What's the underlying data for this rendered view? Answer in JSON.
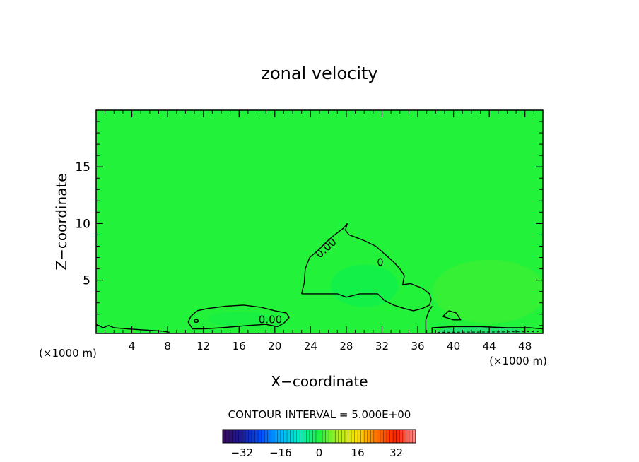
{
  "chart_data": {
    "type": "heatmap",
    "title": "zonal velocity",
    "xlabel": "X−coordinate",
    "ylabel": "Z−coordinate",
    "x_unit_left": "(×1000 m)",
    "x_unit_right": "(×1000 m)",
    "xlim": [
      0,
      50
    ],
    "ylim": [
      0.3,
      20
    ],
    "x_ticks": [
      4,
      8,
      12,
      16,
      20,
      24,
      28,
      32,
      36,
      40,
      44,
      48
    ],
    "y_ticks": [
      5,
      10,
      15
    ],
    "contour_interval_text": "CONTOUR INTERVAL = 5.000E+00",
    "contour_labels": [
      {
        "text": "0.00",
        "x": 26.0,
        "y": 7.6
      },
      {
        "text": "0.00",
        "x": 19.5,
        "y": 1.2
      }
    ],
    "colorbar": {
      "tick_labels": [
        "−32",
        "−16",
        "0",
        "16",
        "32"
      ],
      "tick_values": [
        -32,
        -16,
        0,
        16,
        32
      ],
      "range": [
        -40,
        40
      ],
      "colors": [
        "#3a0a5a",
        "#1a1a9a",
        "#0050ff",
        "#00b4ff",
        "#00f0c0",
        "#20f040",
        "#b0f020",
        "#ffe000",
        "#ff7000",
        "#ff2000",
        "#ff9090"
      ]
    },
    "field_color": "#23f23a",
    "zero_contours": [
      {
        "name": "central-cell",
        "points": [
          [
            23.0,
            3.8
          ],
          [
            23.3,
            4.8
          ],
          [
            23.4,
            6.0
          ],
          [
            23.9,
            7.0
          ],
          [
            24.8,
            7.6
          ],
          [
            25.8,
            8.4
          ],
          [
            26.7,
            9.0
          ],
          [
            27.7,
            9.6
          ],
          [
            28.1,
            10.0
          ],
          [
            27.9,
            9.4
          ],
          [
            28.3,
            9.0
          ],
          [
            29.0,
            8.8
          ],
          [
            30.0,
            8.5
          ],
          [
            31.3,
            8.0
          ],
          [
            32.3,
            7.3
          ],
          [
            33.3,
            6.6
          ],
          [
            34.0,
            6.0
          ],
          [
            34.5,
            5.4
          ],
          [
            34.3,
            4.6
          ],
          [
            35.2,
            4.7
          ],
          [
            35.8,
            4.5
          ],
          [
            36.5,
            4.3
          ],
          [
            37.3,
            3.8
          ],
          [
            37.5,
            3.3
          ],
          [
            37.3,
            2.8
          ],
          [
            36.5,
            2.5
          ],
          [
            35.5,
            2.3
          ],
          [
            34.5,
            2.5
          ],
          [
            33.3,
            2.8
          ],
          [
            32.3,
            3.2
          ],
          [
            31.5,
            3.8
          ],
          [
            29.5,
            3.8
          ],
          [
            28.0,
            3.5
          ],
          [
            27.0,
            3.8
          ],
          [
            25.5,
            3.8
          ],
          [
            24.0,
            3.8
          ],
          [
            23.0,
            3.8
          ]
        ]
      },
      {
        "name": "lower-left-cell",
        "points": [
          [
            10.3,
            1.3
          ],
          [
            10.6,
            1.8
          ],
          [
            11.3,
            2.3
          ],
          [
            12.5,
            2.5
          ],
          [
            14.5,
            2.7
          ],
          [
            16.5,
            2.8
          ],
          [
            18.5,
            2.6
          ],
          [
            20.0,
            2.3
          ],
          [
            21.3,
            2.1
          ],
          [
            21.6,
            1.7
          ],
          [
            21.0,
            1.2
          ],
          [
            20.3,
            0.9
          ],
          [
            19.0,
            1.1
          ],
          [
            17.0,
            1.0
          ],
          [
            14.0,
            0.8
          ],
          [
            12.0,
            0.7
          ],
          [
            10.8,
            0.7
          ],
          [
            10.3,
            1.3
          ]
        ]
      },
      {
        "name": "ground-left",
        "points": [
          [
            0,
            1.1
          ],
          [
            0.8,
            0.8
          ],
          [
            1.4,
            1.0
          ],
          [
            2.0,
            0.8
          ],
          [
            3.5,
            0.7
          ],
          [
            5.5,
            0.6
          ],
          [
            7.5,
            0.5
          ],
          [
            8.2,
            0.4
          ]
        ]
      },
      {
        "name": "east-vertical",
        "points": [
          [
            36.9,
            0.3
          ],
          [
            36.9,
            1.5
          ],
          [
            37.2,
            2.2
          ],
          [
            37.6,
            2.7
          ]
        ]
      },
      {
        "name": "east-small-cell",
        "points": [
          [
            38.8,
            1.8
          ],
          [
            39.5,
            2.3
          ],
          [
            40.3,
            2.1
          ],
          [
            40.8,
            1.5
          ],
          [
            40.0,
            1.5
          ],
          [
            38.8,
            1.8
          ]
        ]
      },
      {
        "name": "east-ground",
        "points": [
          [
            37.6,
            0.3
          ],
          [
            37.6,
            0.8
          ],
          [
            40.0,
            0.9
          ],
          [
            43.0,
            0.9
          ],
          [
            46.0,
            0.8
          ],
          [
            48.5,
            0.8
          ],
          [
            50.0,
            0.7
          ]
        ]
      }
    ]
  }
}
